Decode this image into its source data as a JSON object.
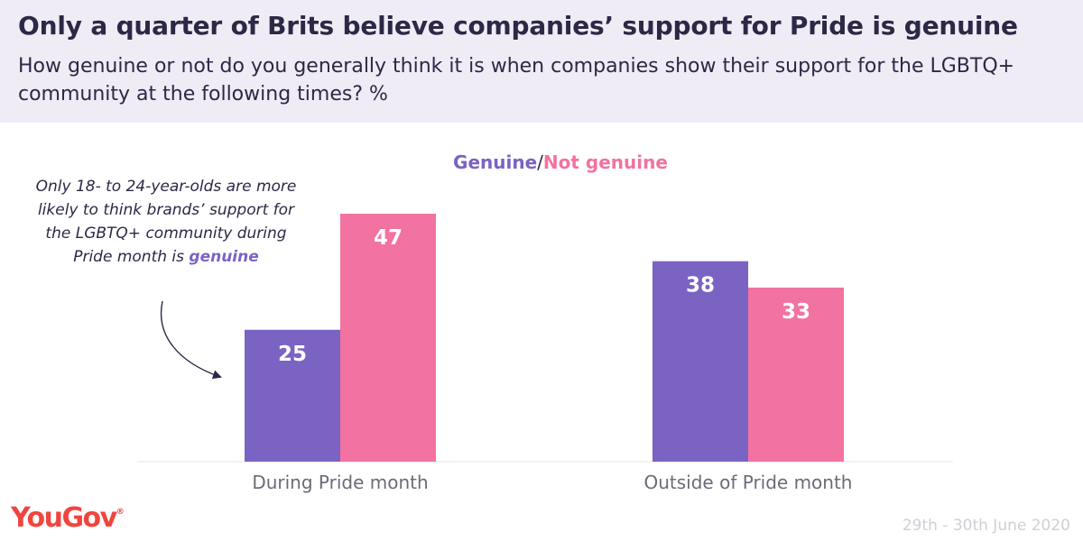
{
  "header": {
    "title": "Only a quarter of Brits believe companies’ support for Pride is genuine",
    "subtitle": "How genuine or not do you generally think it is when companies show their support for the LGBTQ+ community at the following times? %"
  },
  "annotation": {
    "text": "Only 18- to 24-year-olds are more likely to think brands’ support for the LGBTQ+ community during Pride month is ",
    "highlight": "genuine"
  },
  "footer": {
    "logo": "YouGov",
    "logo_mark": "®",
    "date": "29th - 30th June 2020"
  },
  "colors": {
    "genuine": "#7b63c3",
    "not_genuine": "#f272a1",
    "text": "#2d2845"
  },
  "chart_data": {
    "type": "bar",
    "categories": [
      "During Pride month",
      "Outside of Pride month"
    ],
    "series": [
      {
        "name": "Genuine",
        "values": [
          25,
          38
        ]
      },
      {
        "name": "Not genuine",
        "values": [
          47,
          33
        ]
      }
    ],
    "legend_separator": "/",
    "ylim": [
      0,
      55
    ],
    "grid": false,
    "legend_placement": "top-center",
    "data_labels": true
  }
}
